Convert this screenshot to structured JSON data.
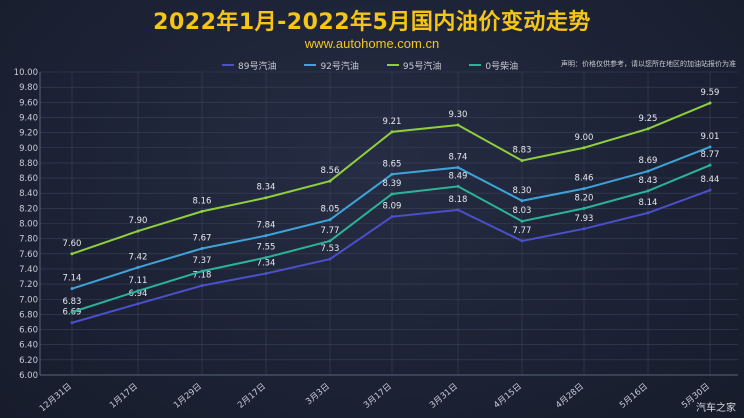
{
  "header": {
    "title": "2022年1月-2022年5月国内油价变动走势",
    "subtitle": "www.autohome.com.cn"
  },
  "disclaimer": "声明：价格仅供参考，请以您所在地区的加油站报价为准",
  "watermark": "汽车之家",
  "colors": {
    "title": "#f5c518",
    "background": "#1c2234",
    "grid": "#3a4258",
    "s89": "#4b4fc9",
    "s92": "#3ea3d8",
    "s95": "#8fcf3c",
    "s0": "#2bb39a"
  },
  "chart_data": {
    "type": "line",
    "categories": [
      "12月31日",
      "1月17日",
      "1月29日",
      "2月17日",
      "3月3日",
      "3月17日",
      "3月31日",
      "4月15日",
      "4月28日",
      "5月16日",
      "5月30日"
    ],
    "series": [
      {
        "name": "89号汽油",
        "color": "#4b4fc9",
        "values": [
          6.69,
          6.94,
          7.18,
          7.34,
          7.53,
          8.09,
          8.18,
          7.77,
          7.93,
          8.14,
          8.44
        ]
      },
      {
        "name": "92号汽油",
        "color": "#3ea3d8",
        "values": [
          7.14,
          7.42,
          7.67,
          7.84,
          8.05,
          8.65,
          8.74,
          8.3,
          8.46,
          8.69,
          9.01
        ]
      },
      {
        "name": "95号汽油",
        "color": "#8fcf3c",
        "values": [
          7.6,
          7.9,
          8.16,
          8.34,
          8.56,
          9.21,
          9.3,
          8.83,
          9.0,
          9.25,
          9.59
        ]
      },
      {
        "name": "0号柴油",
        "color": "#2bb39a",
        "values": [
          6.83,
          7.11,
          7.37,
          7.55,
          7.77,
          8.39,
          8.49,
          8.03,
          8.2,
          8.43,
          8.77
        ]
      }
    ],
    "ylim": [
      6.0,
      10.0
    ],
    "ytick_step": 0.2,
    "grid": true,
    "legend_position": "top"
  }
}
